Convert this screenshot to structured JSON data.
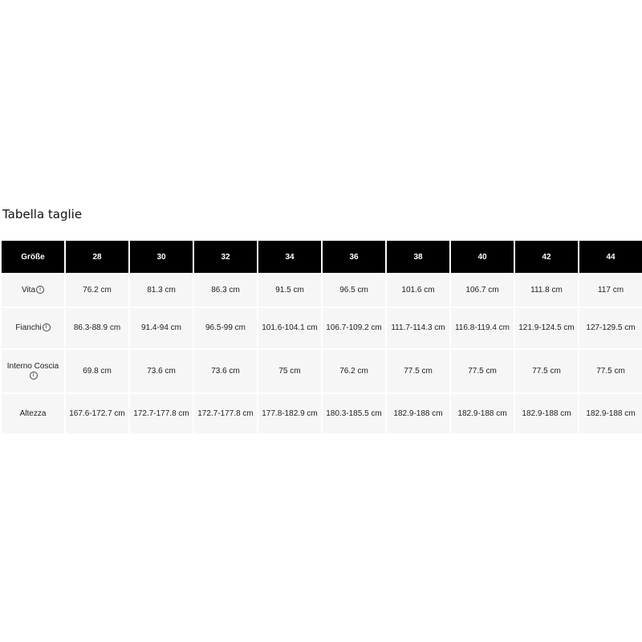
{
  "title": "Tabella taglie",
  "header": {
    "label": "Größe",
    "sizes": [
      "28",
      "30",
      "32",
      "34",
      "36",
      "38",
      "40",
      "42",
      "44"
    ]
  },
  "info_icon": "ⓘ",
  "rows": [
    {
      "label": "Vita",
      "info": true,
      "values": [
        "76.2 cm",
        "81.3 cm",
        "86.3 cm",
        "91.5 cm",
        "96.5 cm",
        "101.6 cm",
        "106.7 cm",
        "111.8 cm",
        "117 cm"
      ]
    },
    {
      "label": "Fianchi",
      "info": true,
      "values": [
        "86.3-88.9 cm",
        "91.4-94 cm",
        "96.5-99 cm",
        "101.6-104.1 cm",
        "106.7-109.2 cm",
        "111.7-114.3 cm",
        "116.8-119.4 cm",
        "121.9-124.5 cm",
        "127-129.5 cm"
      ]
    },
    {
      "label": "Interno Coscia",
      "info": true,
      "values": [
        "69.8 cm",
        "73.6 cm",
        "73.6 cm",
        "75 cm",
        "76.2 cm",
        "77.5 cm",
        "77.5 cm",
        "77.5 cm",
        "77.5 cm"
      ]
    },
    {
      "label": "Altezza",
      "info": false,
      "values": [
        "167.6-172.7 cm",
        "172.7-177.8 cm",
        "172.7-177.8 cm",
        "177.8-182.9 cm",
        "180.3-185.5 cm",
        "182.9-188 cm",
        "182.9-188 cm",
        "182.9-188 cm",
        "182.9-188 cm"
      ]
    }
  ]
}
